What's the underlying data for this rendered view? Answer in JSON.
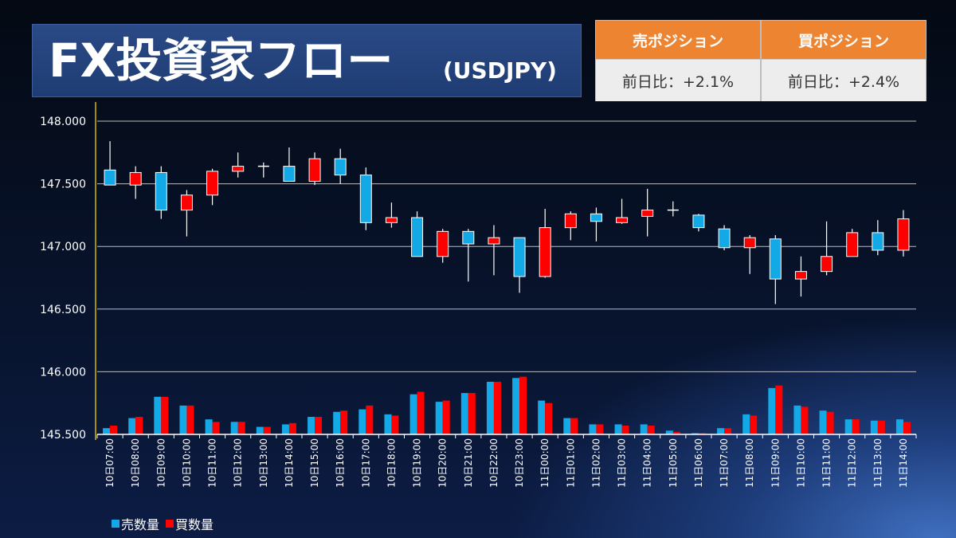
{
  "header": {
    "title": "FX投資家フロー",
    "pair": "(USDJPY)"
  },
  "positions": [
    {
      "label": "売ポジション",
      "change": "前日比：+2.1%"
    },
    {
      "label": "買ポジション",
      "change": "前日比：+2.4%"
    }
  ],
  "colors": {
    "sell": "#13a8e6",
    "buy": "#ff0000",
    "marker": "#d4b800",
    "grid": "#d9d9d9"
  },
  "chart_data": {
    "type": "candlestick",
    "title": "",
    "ylim": [
      145.5,
      148.0
    ],
    "yticks": [
      "148.000",
      "147.500",
      "147.000",
      "146.500",
      "146.000",
      "145.500"
    ],
    "ytick_values": [
      148.0,
      147.5,
      147.0,
      146.5,
      146.0,
      145.5
    ],
    "categories": [
      "10日07:00",
      "10日08:00",
      "10日09:00",
      "10日10:00",
      "10日11:00",
      "10日12:00",
      "10日13:00",
      "10日14:00",
      "10日15:00",
      "10日16:00",
      "10日17:00",
      "10日18:00",
      "10日19:00",
      "10日20:00",
      "10日21:00",
      "10日22:00",
      "10日23:00",
      "11日00:00",
      "11日01:00",
      "11日02:00",
      "11日03:00",
      "11日04:00",
      "11日05:00",
      "11日06:00",
      "11日07:00",
      "11日08:00",
      "11日09:00",
      "11日10:00",
      "11日11:00",
      "11日12:00",
      "11日13:00",
      "11日14:00"
    ],
    "candles": [
      {
        "o": 147.61,
        "c": 147.49,
        "h": 147.84,
        "l": 147.49
      },
      {
        "o": 147.49,
        "c": 147.59,
        "h": 147.64,
        "l": 147.38
      },
      {
        "o": 147.59,
        "c": 147.29,
        "h": 147.64,
        "l": 147.22
      },
      {
        "o": 147.29,
        "c": 147.41,
        "h": 147.45,
        "l": 147.08
      },
      {
        "o": 147.41,
        "c": 147.6,
        "h": 147.62,
        "l": 147.33
      },
      {
        "o": 147.6,
        "c": 147.64,
        "h": 147.75,
        "l": 147.55
      },
      {
        "o": 147.64,
        "c": 147.64,
        "h": 147.67,
        "l": 147.55
      },
      {
        "o": 147.64,
        "c": 147.52,
        "h": 147.79,
        "l": 147.52
      },
      {
        "o": 147.52,
        "c": 147.7,
        "h": 147.75,
        "l": 147.49
      },
      {
        "o": 147.7,
        "c": 147.57,
        "h": 147.78,
        "l": 147.5
      },
      {
        "o": 147.57,
        "c": 147.19,
        "h": 147.63,
        "l": 147.13
      },
      {
        "o": 147.19,
        "c": 147.23,
        "h": 147.35,
        "l": 147.15
      },
      {
        "o": 147.23,
        "c": 146.92,
        "h": 147.28,
        "l": 146.92
      },
      {
        "o": 146.92,
        "c": 147.12,
        "h": 147.14,
        "l": 146.87
      },
      {
        "o": 147.12,
        "c": 147.02,
        "h": 147.14,
        "l": 146.72
      },
      {
        "o": 147.02,
        "c": 147.07,
        "h": 147.17,
        "l": 146.77
      },
      {
        "o": 147.07,
        "c": 146.76,
        "h": 147.07,
        "l": 146.63
      },
      {
        "o": 146.76,
        "c": 147.15,
        "h": 147.3,
        "l": 146.75
      },
      {
        "o": 147.15,
        "c": 147.26,
        "h": 147.28,
        "l": 147.05
      },
      {
        "o": 147.26,
        "c": 147.2,
        "h": 147.31,
        "l": 147.04
      },
      {
        "o": 147.19,
        "c": 147.23,
        "h": 147.38,
        "l": 147.18
      },
      {
        "o": 147.24,
        "c": 147.29,
        "h": 147.46,
        "l": 147.08
      },
      {
        "o": 147.29,
        "c": 147.29,
        "h": 147.36,
        "l": 147.24
      },
      {
        "o": 147.25,
        "c": 147.15,
        "h": 147.26,
        "l": 147.12
      },
      {
        "o": 147.14,
        "c": 146.99,
        "h": 147.17,
        "l": 146.97
      },
      {
        "o": 146.99,
        "c": 147.07,
        "h": 147.09,
        "l": 146.78
      },
      {
        "o": 147.06,
        "c": 146.74,
        "h": 147.09,
        "l": 146.54
      },
      {
        "o": 146.74,
        "c": 146.8,
        "h": 146.92,
        "l": 146.6
      },
      {
        "o": 146.8,
        "c": 146.92,
        "h": 147.2,
        "l": 146.77
      },
      {
        "o": 146.92,
        "c": 147.11,
        "h": 147.14,
        "l": 146.92
      },
      {
        "o": 147.11,
        "c": 146.97,
        "h": 147.21,
        "l": 146.93
      },
      {
        "o": 146.97,
        "c": 147.22,
        "h": 147.29,
        "l": 146.92
      }
    ],
    "volume_series": [
      {
        "name": "売数量",
        "values": [
          0.05,
          0.13,
          0.3,
          0.23,
          0.12,
          0.1,
          0.06,
          0.08,
          0.14,
          0.18,
          0.2,
          0.16,
          0.32,
          0.26,
          0.33,
          0.42,
          0.45,
          0.27,
          0.13,
          0.08,
          0.08,
          0.08,
          0.03,
          0.01,
          0.05,
          0.16,
          0.37,
          0.23,
          0.19,
          0.12,
          0.11,
          0.12
        ]
      },
      {
        "name": "買数量",
        "values": [
          0.07,
          0.14,
          0.3,
          0.23,
          0.1,
          0.1,
          0.06,
          0.09,
          0.14,
          0.19,
          0.23,
          0.15,
          0.34,
          0.27,
          0.33,
          0.42,
          0.46,
          0.25,
          0.13,
          0.08,
          0.07,
          0.07,
          0.02,
          0.01,
          0.05,
          0.15,
          0.39,
          0.22,
          0.18,
          0.12,
          0.11,
          0.1
        ]
      }
    ],
    "marker_category": "10日06:00",
    "grid": true,
    "legend": "bottom-left"
  }
}
